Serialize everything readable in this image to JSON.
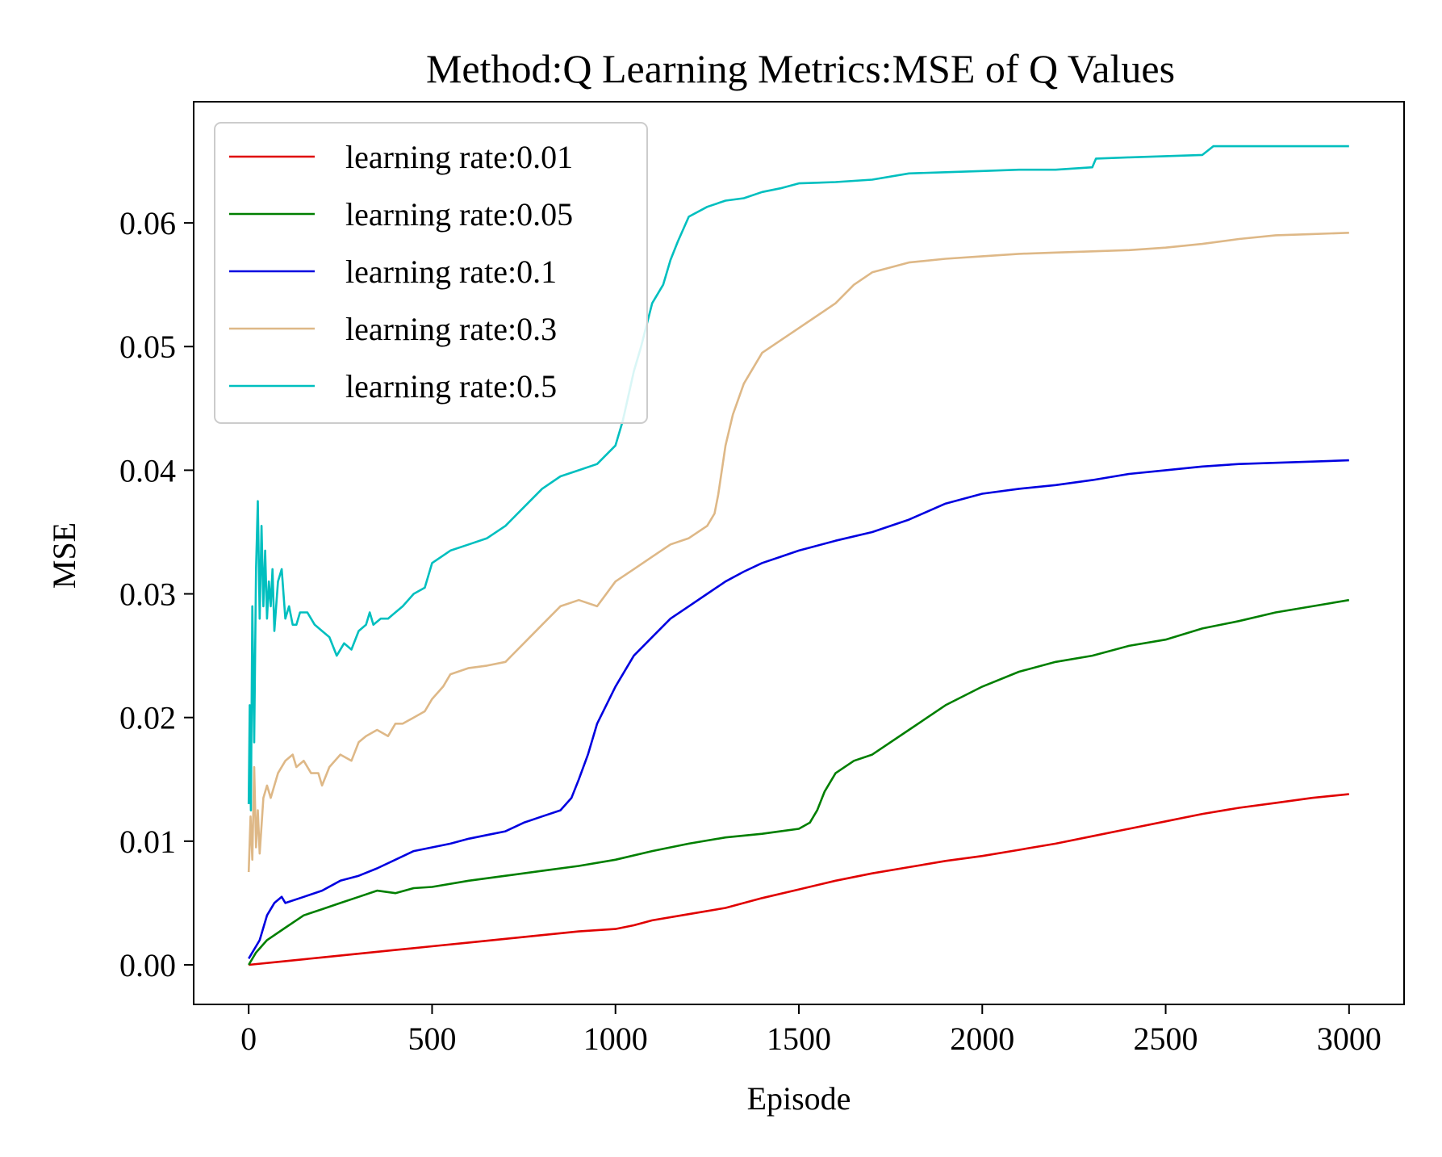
{
  "chart_data": {
    "type": "line",
    "title": "Method:Q Learning   Metrics:MSE of Q Values",
    "xlabel": "Episode",
    "ylabel": "MSE",
    "xlim": [
      -150,
      3150
    ],
    "ylim": [
      -0.0032,
      0.0698
    ],
    "xticks": [
      {
        "value": 0,
        "label": "0"
      },
      {
        "value": 500,
        "label": "500"
      },
      {
        "value": 1000,
        "label": "1000"
      },
      {
        "value": 1500,
        "label": "1500"
      },
      {
        "value": 2000,
        "label": "2000"
      },
      {
        "value": 2500,
        "label": "2500"
      },
      {
        "value": 3000,
        "label": "3000"
      }
    ],
    "yticks": [
      {
        "value": 0.0,
        "label": "0.00"
      },
      {
        "value": 0.01,
        "label": "0.01"
      },
      {
        "value": 0.02,
        "label": "0.02"
      },
      {
        "value": 0.03,
        "label": "0.03"
      },
      {
        "value": 0.04,
        "label": "0.04"
      },
      {
        "value": 0.05,
        "label": "0.05"
      },
      {
        "value": 0.06,
        "label": "0.06"
      }
    ],
    "grid": false,
    "legend_position": "top-left",
    "series": [
      {
        "name": "learning rate:0.01",
        "color": "#e00000",
        "x": [
          0,
          100,
          200,
          300,
          400,
          500,
          600,
          700,
          800,
          900,
          1000,
          1050,
          1100,
          1200,
          1300,
          1400,
          1500,
          1600,
          1700,
          1800,
          1900,
          2000,
          2100,
          2200,
          2300,
          2400,
          2500,
          2600,
          2700,
          2800,
          2900,
          3000
        ],
        "y": [
          0.0,
          0.0003,
          0.0006,
          0.0009,
          0.0012,
          0.0015,
          0.0018,
          0.0021,
          0.0024,
          0.0027,
          0.0029,
          0.0032,
          0.0036,
          0.0041,
          0.0046,
          0.0054,
          0.0061,
          0.0068,
          0.0074,
          0.0079,
          0.0084,
          0.0088,
          0.0093,
          0.0098,
          0.0104,
          0.011,
          0.0116,
          0.0122,
          0.0127,
          0.0131,
          0.0135,
          0.0138
        ]
      },
      {
        "name": "learning rate:0.05",
        "color": "#007f00",
        "x": [
          0,
          20,
          50,
          100,
          150,
          200,
          250,
          300,
          350,
          400,
          450,
          500,
          600,
          700,
          800,
          900,
          1000,
          1100,
          1200,
          1300,
          1400,
          1450,
          1500,
          1530,
          1550,
          1570,
          1600,
          1650,
          1700,
          1800,
          1900,
          2000,
          2100,
          2200,
          2300,
          2400,
          2500,
          2600,
          2700,
          2800,
          2900,
          3000
        ],
        "y": [
          0.0,
          0.001,
          0.002,
          0.003,
          0.004,
          0.0045,
          0.005,
          0.0055,
          0.006,
          0.0058,
          0.0062,
          0.0063,
          0.0068,
          0.0072,
          0.0076,
          0.008,
          0.0085,
          0.0092,
          0.0098,
          0.0103,
          0.0106,
          0.0108,
          0.011,
          0.0115,
          0.0125,
          0.014,
          0.0155,
          0.0165,
          0.017,
          0.019,
          0.021,
          0.0225,
          0.0237,
          0.0245,
          0.025,
          0.0258,
          0.0263,
          0.0272,
          0.0278,
          0.0285,
          0.029,
          0.0295
        ]
      },
      {
        "name": "learning rate:0.1",
        "color": "#0000e0",
        "x": [
          0,
          10,
          20,
          30,
          50,
          70,
          90,
          100,
          150,
          200,
          250,
          300,
          350,
          400,
          450,
          500,
          550,
          600,
          650,
          700,
          750,
          800,
          850,
          880,
          900,
          925,
          950,
          1000,
          1050,
          1100,
          1150,
          1200,
          1250,
          1300,
          1350,
          1400,
          1450,
          1500,
          1600,
          1700,
          1800,
          1900,
          2000,
          2100,
          2200,
          2300,
          2400,
          2500,
          2600,
          2700,
          2800,
          2900,
          3000
        ],
        "y": [
          0.0005,
          0.001,
          0.0015,
          0.002,
          0.004,
          0.005,
          0.0055,
          0.005,
          0.0055,
          0.006,
          0.0068,
          0.0072,
          0.0078,
          0.0085,
          0.0092,
          0.0095,
          0.0098,
          0.0102,
          0.0105,
          0.0108,
          0.0115,
          0.012,
          0.0125,
          0.0135,
          0.015,
          0.017,
          0.0195,
          0.0225,
          0.025,
          0.0265,
          0.028,
          0.029,
          0.03,
          0.031,
          0.0318,
          0.0325,
          0.033,
          0.0335,
          0.0343,
          0.035,
          0.036,
          0.0373,
          0.0381,
          0.0385,
          0.0388,
          0.0392,
          0.0397,
          0.04,
          0.0403,
          0.0405,
          0.0406,
          0.0407,
          0.0408
        ]
      },
      {
        "name": "learning rate:0.3",
        "color": "#deb887",
        "x": [
          0,
          5,
          10,
          15,
          20,
          25,
          30,
          40,
          50,
          60,
          80,
          100,
          120,
          130,
          150,
          170,
          190,
          200,
          220,
          250,
          280,
          300,
          320,
          350,
          380,
          400,
          420,
          450,
          480,
          500,
          530,
          550,
          600,
          650,
          700,
          750,
          800,
          850,
          900,
          950,
          1000,
          1050,
          1100,
          1150,
          1200,
          1250,
          1270,
          1280,
          1300,
          1320,
          1350,
          1400,
          1450,
          1500,
          1550,
          1600,
          1650,
          1700,
          1800,
          1900,
          2000,
          2100,
          2200,
          2300,
          2400,
          2500,
          2600,
          2700,
          2800,
          2900,
          3000
        ],
        "y": [
          0.0075,
          0.012,
          0.0085,
          0.016,
          0.0095,
          0.0125,
          0.009,
          0.0135,
          0.0145,
          0.0135,
          0.0155,
          0.0165,
          0.017,
          0.016,
          0.0165,
          0.0155,
          0.0155,
          0.0145,
          0.016,
          0.017,
          0.0165,
          0.018,
          0.0185,
          0.019,
          0.0185,
          0.0195,
          0.0195,
          0.02,
          0.0205,
          0.0215,
          0.0225,
          0.0235,
          0.024,
          0.0242,
          0.0245,
          0.026,
          0.0275,
          0.029,
          0.0295,
          0.029,
          0.031,
          0.032,
          0.033,
          0.034,
          0.0345,
          0.0355,
          0.0365,
          0.038,
          0.042,
          0.0445,
          0.047,
          0.0495,
          0.0505,
          0.0515,
          0.0525,
          0.0535,
          0.055,
          0.056,
          0.0568,
          0.0571,
          0.0573,
          0.0575,
          0.0576,
          0.0577,
          0.0578,
          0.058,
          0.0583,
          0.0587,
          0.059,
          0.0591,
          0.0592
        ]
      },
      {
        "name": "learning rate:0.5",
        "color": "#00bfbf",
        "x": [
          0,
          3,
          6,
          10,
          15,
          20,
          25,
          30,
          35,
          40,
          45,
          50,
          55,
          60,
          65,
          70,
          80,
          90,
          100,
          110,
          120,
          130,
          140,
          160,
          180,
          200,
          220,
          240,
          260,
          280,
          300,
          320,
          330,
          340,
          360,
          380,
          400,
          420,
          450,
          480,
          500,
          550,
          600,
          650,
          700,
          750,
          800,
          850,
          900,
          950,
          1000,
          1020,
          1050,
          1070,
          1100,
          1130,
          1150,
          1170,
          1200,
          1250,
          1300,
          1350,
          1400,
          1450,
          1500,
          1600,
          1700,
          1800,
          1900,
          2000,
          2100,
          2200,
          2300,
          2310,
          2400,
          2500,
          2600,
          2630,
          2700,
          2800,
          2900,
          3000
        ],
        "y": [
          0.013,
          0.021,
          0.0125,
          0.029,
          0.018,
          0.032,
          0.0375,
          0.028,
          0.0355,
          0.029,
          0.0335,
          0.028,
          0.031,
          0.029,
          0.032,
          0.027,
          0.031,
          0.032,
          0.028,
          0.029,
          0.0275,
          0.0275,
          0.0285,
          0.0285,
          0.0275,
          0.027,
          0.0265,
          0.025,
          0.026,
          0.0255,
          0.027,
          0.0275,
          0.0285,
          0.0275,
          0.028,
          0.028,
          0.0285,
          0.029,
          0.03,
          0.0305,
          0.0325,
          0.0335,
          0.034,
          0.0345,
          0.0355,
          0.037,
          0.0385,
          0.0395,
          0.04,
          0.0405,
          0.042,
          0.044,
          0.048,
          0.05,
          0.0535,
          0.055,
          0.057,
          0.0585,
          0.0605,
          0.0613,
          0.0618,
          0.062,
          0.0625,
          0.0628,
          0.0632,
          0.0633,
          0.0635,
          0.064,
          0.0641,
          0.0642,
          0.0643,
          0.0643,
          0.0645,
          0.0652,
          0.0653,
          0.0654,
          0.0655,
          0.0662,
          0.0662,
          0.0662,
          0.0662,
          0.0662
        ]
      }
    ]
  }
}
